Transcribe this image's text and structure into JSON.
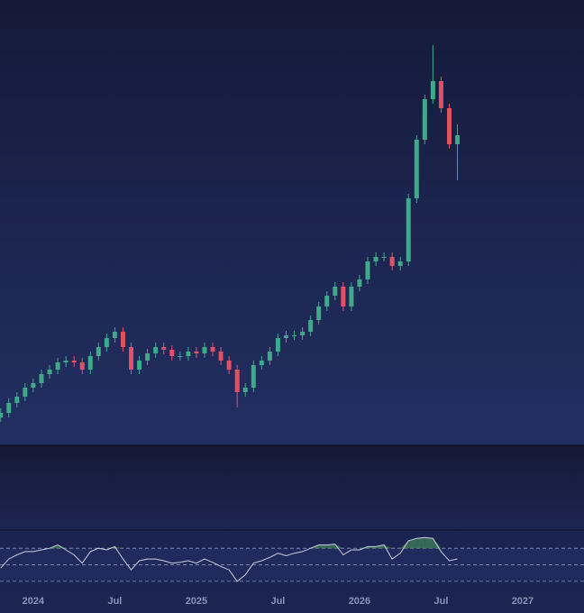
{
  "chart_data": {
    "type": "candlestick",
    "x": [
      2023.8,
      2023.85,
      2023.9,
      2023.95,
      2024.0,
      2024.05,
      2024.1,
      2024.15,
      2024.2,
      2024.25,
      2024.3,
      2024.35,
      2024.4,
      2024.45,
      2024.5,
      2024.55,
      2024.6,
      2024.65,
      2024.7,
      2024.75,
      2024.8,
      2024.85,
      2024.9,
      2024.95,
      2025.0,
      2025.05,
      2025.1,
      2025.15,
      2025.2,
      2025.25,
      2025.3,
      2025.35,
      2025.4,
      2025.45,
      2025.5,
      2025.55,
      2025.6,
      2025.65,
      2025.7,
      2025.75,
      2025.8,
      2025.85,
      2025.9,
      2025.95,
      2026.0,
      2026.05,
      2026.1,
      2026.15,
      2026.2,
      2026.25,
      2026.3,
      2026.35,
      2026.4,
      2026.45,
      2026.5,
      2026.55,
      2026.6
    ],
    "xlim": [
      2023.796,
      2027.376
    ],
    "xticks": [
      {
        "value": 2024,
        "label": "2024"
      },
      {
        "value": 2024.5,
        "label": "Jul"
      },
      {
        "value": 2025,
        "label": "2025"
      },
      {
        "value": 2025.5,
        "label": "Jul"
      },
      {
        "value": 2026,
        "label": "2026"
      },
      {
        "value": 2026.5,
        "label": "Jul"
      },
      {
        "value": 2027,
        "label": "2027"
      }
    ],
    "ylim": [
      0,
      493
    ],
    "up_color": "#3fa98a",
    "down_color": "#e05263",
    "open": [
      30,
      35,
      46,
      53,
      63,
      68,
      78,
      83,
      91,
      93,
      91,
      83,
      98,
      108,
      118,
      125,
      108,
      83,
      93,
      101,
      108,
      105,
      98,
      98,
      103,
      101,
      108,
      103,
      93,
      83,
      58,
      63,
      88,
      93,
      103,
      118,
      121,
      121,
      125,
      138,
      153,
      165,
      175,
      153,
      175,
      183,
      203,
      208,
      208,
      198,
      203,
      273,
      338,
      383,
      403,
      373,
      333
    ],
    "high": [
      40,
      51,
      58,
      68,
      73,
      83,
      88,
      96,
      98,
      98,
      96,
      103,
      113,
      123,
      130,
      130,
      113,
      98,
      106,
      113,
      113,
      110,
      103,
      108,
      108,
      113,
      113,
      108,
      98,
      88,
      68,
      93,
      98,
      108,
      123,
      126,
      126,
      130,
      143,
      158,
      170,
      180,
      180,
      180,
      188,
      208,
      213,
      213,
      213,
      208,
      278,
      343,
      388,
      443,
      408,
      378,
      355
    ],
    "low": [
      25,
      30,
      41,
      48,
      58,
      63,
      73,
      78,
      86,
      86,
      78,
      78,
      93,
      103,
      113,
      103,
      78,
      78,
      88,
      96,
      100,
      93,
      93,
      93,
      96,
      96,
      98,
      88,
      78,
      41,
      53,
      58,
      83,
      88,
      98,
      113,
      116,
      116,
      120,
      133,
      148,
      160,
      148,
      148,
      170,
      178,
      198,
      203,
      193,
      193,
      198,
      268,
      333,
      378,
      368,
      328,
      293
    ],
    "close": [
      35,
      46,
      53,
      63,
      68,
      78,
      83,
      91,
      93,
      91,
      83,
      98,
      108,
      118,
      125,
      108,
      83,
      93,
      101,
      108,
      105,
      98,
      98,
      103,
      101,
      108,
      103,
      93,
      83,
      58,
      63,
      88,
      93,
      103,
      118,
      121,
      121,
      125,
      138,
      153,
      165,
      175,
      153,
      175,
      183,
      203,
      208,
      208,
      198,
      203,
      273,
      338,
      383,
      403,
      373,
      333,
      343
    ],
    "rsi": {
      "type": "line",
      "axis": "y2",
      "color": "#c9cde0",
      "fill_color": "#3f7a5a",
      "values": [
        46,
        57,
        62,
        66,
        66,
        68,
        70,
        74,
        68,
        62,
        52,
        66,
        70,
        68,
        72,
        57,
        44,
        55,
        57,
        57,
        55,
        52,
        53,
        55,
        52,
        57,
        53,
        48,
        44,
        30,
        38,
        52,
        55,
        59,
        64,
        61,
        64,
        66,
        70,
        74,
        74,
        75,
        62,
        68,
        68,
        72,
        72,
        74,
        57,
        64,
        79,
        82,
        83,
        82,
        66,
        55,
        57
      ]
    },
    "y2lim": [
      19,
      92
    ],
    "y2ticks": [
      30,
      50,
      70
    ]
  }
}
